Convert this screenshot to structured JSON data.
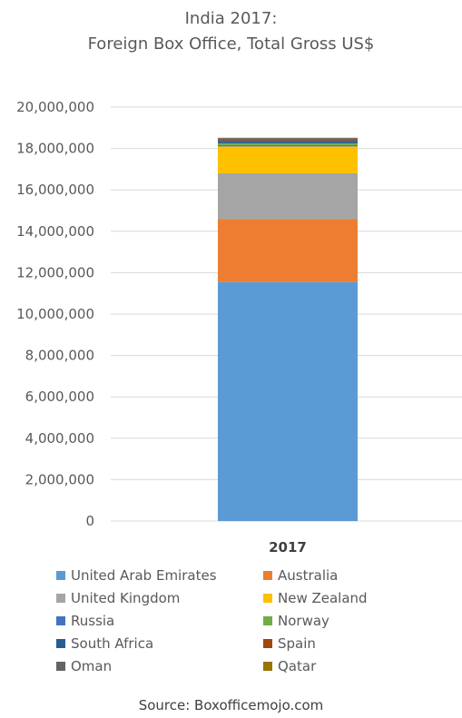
{
  "chart_data": {
    "type": "bar",
    "stacked": true,
    "title": "India 2017:",
    "subtitle": "Foreign Box Office, Total Gross US$",
    "categories": [
      "2017"
    ],
    "ylim": [
      0,
      20000000
    ],
    "yticks": [
      "0",
      "2,000,000",
      "4,000,000",
      "6,000,000",
      "8,000,000",
      "10,000,000",
      "12,000,000",
      "14,000,000",
      "16,000,000",
      "18,000,000",
      "20,000,000"
    ],
    "grid": true,
    "legend_position": "bottom",
    "series": [
      {
        "name": "United Arab Emirates",
        "values": [
          11550000
        ],
        "color": "#5B9BD5"
      },
      {
        "name": "Australia",
        "values": [
          3050000
        ],
        "color": "#ED7D31"
      },
      {
        "name": "United Kingdom",
        "values": [
          2200000
        ],
        "color": "#A5A5A5"
      },
      {
        "name": "New Zealand",
        "values": [
          1300000
        ],
        "color": "#FFC000"
      },
      {
        "name": "Russia",
        "values": [
          60000
        ],
        "color": "#4472C4"
      },
      {
        "name": "Norway",
        "values": [
          90000
        ],
        "color": "#70AD47"
      },
      {
        "name": "South Africa",
        "values": [
          120000
        ],
        "color": "#255E91"
      },
      {
        "name": "Spain",
        "values": [
          30000
        ],
        "color": "#9E480E"
      },
      {
        "name": "Oman",
        "values": [
          100000
        ],
        "color": "#636363"
      },
      {
        "name": "Qatar",
        "values": [
          20000
        ],
        "color": "#997300"
      }
    ],
    "source": "Source: Boxofficemojo.com"
  }
}
